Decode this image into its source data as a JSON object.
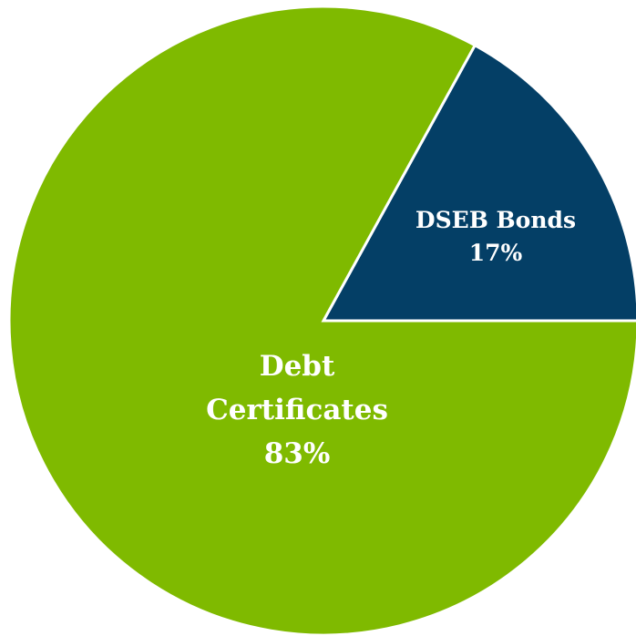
{
  "chart_data": {
    "type": "pie",
    "title": "",
    "slices": [
      {
        "label_lines": [
          "DSEB Bonds",
          "17%"
        ],
        "category": "DSEB Bonds",
        "value": 17,
        "color": "#043f66"
      },
      {
        "label_lines": [
          "Debt",
          "Certificates",
          "83%"
        ],
        "category": "Debt Certificates",
        "value": 83,
        "color": "#7fba00"
      }
    ],
    "legend": "none"
  }
}
